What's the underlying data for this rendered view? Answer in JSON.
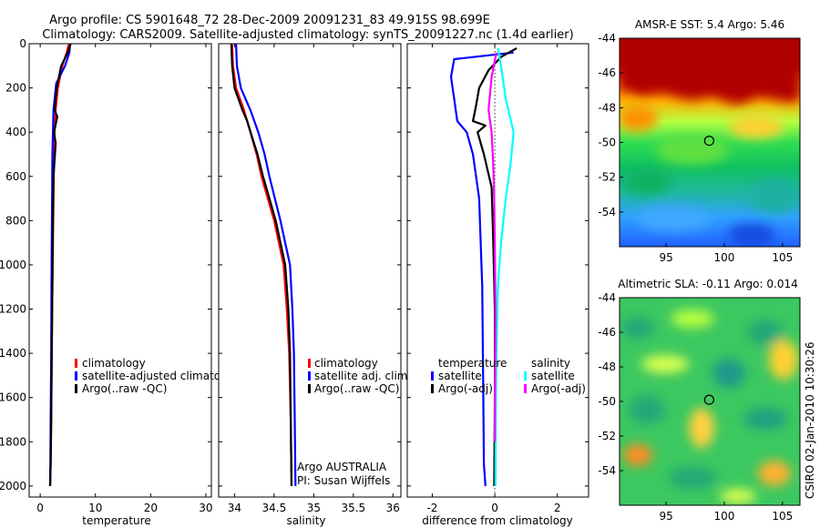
{
  "header": {
    "line1": "Argo profile: CS 5901648_72 28-Dec-2009 20091231_83 49.915S 98.699E",
    "line2": "Climatology: CARS2009. Satellite-adjusted climatology: synTS_20091227.nc (1.4d earlier)"
  },
  "footer": {
    "stamp": "CSIRO 02-Jan-2010 10:30:26"
  },
  "colors": {
    "climatology": "#ff0000",
    "satellite": "#0000ff",
    "argo": "#000000",
    "sat_sal": "#00ffff",
    "argo_sal": "#ff00ff"
  },
  "chart_data": [
    {
      "type": "line",
      "title": "",
      "xlabel": "temperature",
      "ylabel": "",
      "xlim": [
        -2,
        31
      ],
      "ylim": [
        2050,
        0
      ],
      "xticks": [
        "0",
        "10",
        "20",
        "30"
      ],
      "xtick_values": [
        0,
        10,
        20,
        30
      ],
      "yticks": [
        "0",
        "200",
        "400",
        "600",
        "800",
        "1000",
        "1200",
        "1400",
        "1600",
        "1800",
        "2000"
      ],
      "ytick_values": [
        0,
        200,
        400,
        600,
        800,
        1000,
        1200,
        1400,
        1600,
        1800,
        2000
      ],
      "legend": [
        "climatology",
        "satellite-adjusted climatology",
        "Argo(..raw -QC)"
      ],
      "series": [
        {
          "name": "climatology",
          "color": "#ff0000",
          "x": [
            5.2,
            4.8,
            4.0,
            3.2,
            2.8,
            2.6,
            2.5,
            2.4,
            2.3,
            2.2,
            2.1,
            2.0,
            1.9,
            1.8
          ],
          "y": [
            0,
            40,
            100,
            200,
            300,
            400,
            500,
            700,
            900,
            1100,
            1400,
            1700,
            1900,
            2000
          ]
        },
        {
          "name": "satellite-adjusted climatology",
          "color": "#0000ff",
          "x": [
            5.4,
            5.3,
            4.5,
            2.9,
            2.4,
            2.3,
            2.2,
            2.15,
            2.1,
            2.05,
            2.0,
            1.9,
            1.85,
            1.8
          ],
          "y": [
            0,
            40,
            100,
            180,
            300,
            400,
            500,
            700,
            900,
            1100,
            1400,
            1700,
            1900,
            2000
          ]
        },
        {
          "name": "Argo(..raw -QC)",
          "color": "#000000",
          "x": [
            5.5,
            5.0,
            3.8,
            3.4,
            3.0,
            2.6,
            3.1,
            2.5,
            2.8,
            2.4,
            2.3,
            2.2,
            2.1,
            2.0,
            1.9,
            1.8
          ],
          "y": [
            0,
            40,
            100,
            150,
            200,
            300,
            330,
            400,
            450,
            600,
            800,
            1100,
            1400,
            1700,
            1900,
            2000
          ]
        }
      ]
    },
    {
      "type": "line",
      "title": "",
      "xlabel": "salinity",
      "ylabel": "",
      "xlim": [
        33.8,
        36.1
      ],
      "ylim": [
        2050,
        0
      ],
      "xticks": [
        "34",
        "34.5",
        "35",
        "35.5",
        "36"
      ],
      "xtick_values": [
        34,
        34.5,
        35,
        35.5,
        36
      ],
      "legend": [
        "climatology",
        "satellite adj. clim.",
        "Argo(..raw -QC)"
      ],
      "annotations": [
        "Argo AUSTRALIA",
        "PI: Susan Wijffels"
      ],
      "series": [
        {
          "name": "climatology",
          "color": "#ff0000",
          "x": [
            33.97,
            33.98,
            34.02,
            34.12,
            34.2,
            34.28,
            34.34,
            34.42,
            34.5,
            34.56,
            34.62,
            34.66,
            34.69,
            34.71,
            34.72
          ],
          "y": [
            0,
            100,
            200,
            300,
            400,
            500,
            600,
            700,
            800,
            900,
            1000,
            1200,
            1400,
            1700,
            2000
          ]
        },
        {
          "name": "satellite adj. clim.",
          "color": "#0000ff",
          "x": [
            34.02,
            34.03,
            34.08,
            34.2,
            34.3,
            34.38,
            34.44,
            34.51,
            34.58,
            34.64,
            34.7,
            34.73,
            34.75,
            34.76,
            34.77
          ],
          "y": [
            0,
            100,
            200,
            300,
            400,
            500,
            600,
            700,
            800,
            900,
            1000,
            1200,
            1400,
            1700,
            2000
          ]
        },
        {
          "name": "Argo(..raw -QC)",
          "color": "#000000",
          "x": [
            33.96,
            33.97,
            34.0,
            34.1,
            34.16,
            34.22,
            34.29,
            34.36,
            34.44,
            34.52,
            34.58,
            34.64,
            34.68,
            34.7,
            34.71,
            34.72
          ],
          "y": [
            0,
            100,
            200,
            300,
            350,
            420,
            500,
            600,
            700,
            800,
            900,
            1000,
            1200,
            1400,
            1700,
            2000
          ]
        }
      ]
    },
    {
      "type": "line",
      "title": "",
      "xlabel": "difference from climatology",
      "ylabel": "",
      "xlim": [
        -2.8,
        3.0
      ],
      "ylim": [
        2050,
        0
      ],
      "xticks": [
        "-2",
        "0",
        "2"
      ],
      "xtick_values": [
        -2,
        0,
        2
      ],
      "zero_reference": 0,
      "legend_titles": [
        "temperature",
        "salinity"
      ],
      "legend": [
        "satellite",
        "Argo(-adj)",
        "satellite",
        "Argo(-adj)"
      ],
      "series": [
        {
          "name": "temperature satellite",
          "color": "#0000ff",
          "x": [
            0.6,
            -1.3,
            -1.4,
            -1.3,
            -1.2,
            -0.9,
            -0.7,
            -0.5,
            -0.45,
            -0.4,
            -0.38,
            -0.36,
            -0.35,
            -0.3
          ],
          "y": [
            40,
            70,
            150,
            250,
            350,
            400,
            500,
            700,
            900,
            1100,
            1400,
            1700,
            1900,
            2000
          ]
        },
        {
          "name": "temperature Argo(-adj)",
          "color": "#000000",
          "x": [
            0.7,
            0.2,
            -0.2,
            -0.5,
            -0.6,
            -0.7,
            -0.3,
            -0.55,
            -0.35,
            -0.1,
            -0.05,
            0.0,
            0.0,
            -0.02
          ],
          "y": [
            20,
            60,
            120,
            200,
            280,
            350,
            370,
            400,
            500,
            650,
            900,
            1200,
            1600,
            2000
          ]
        },
        {
          "name": "salinity satellite",
          "color": "#00ffff",
          "x": [
            0.1,
            0.2,
            0.35,
            0.6,
            0.5,
            0.35,
            0.2,
            0.1,
            0.05,
            0.03,
            0.02
          ],
          "y": [
            20,
            100,
            250,
            400,
            550,
            700,
            900,
            1100,
            1400,
            1700,
            2000
          ]
        },
        {
          "name": "salinity Argo(-adj)",
          "color": "#ff00ff",
          "x": [
            0.05,
            -0.1,
            -0.2,
            -0.1,
            -0.05,
            -0.02,
            0.0,
            0.02,
            0.01,
            0.0
          ],
          "y": [
            40,
            150,
            300,
            400,
            550,
            700,
            900,
            1200,
            1500,
            1800
          ]
        }
      ]
    },
    {
      "type": "heatmap",
      "title": "AMSR-E SST: 5.4 Argo: 5.46",
      "xlabel": "",
      "ylabel": "",
      "xlim": [
        91,
        106.5
      ],
      "ylim": [
        -56,
        -44
      ],
      "xticks": [
        "95",
        "100",
        "105"
      ],
      "xtick_values": [
        95,
        100,
        105
      ],
      "yticks": [
        "-44",
        "-46",
        "-48",
        "-50",
        "-52",
        "-54"
      ],
      "ytick_values": [
        -44,
        -46,
        -48,
        -50,
        -52,
        -54
      ],
      "marker": {
        "lon": 98.7,
        "lat": -49.9
      }
    },
    {
      "type": "heatmap",
      "title": "Altimetric SLA: -0.11 Argo: 0.014",
      "xlabel": "",
      "ylabel": "",
      "xlim": [
        91,
        106.5
      ],
      "ylim": [
        -56,
        -44
      ],
      "xticks": [
        "95",
        "100",
        "105"
      ],
      "xtick_values": [
        95,
        100,
        105
      ],
      "yticks": [
        "-44",
        "-46",
        "-48",
        "-50",
        "-52",
        "-54"
      ],
      "ytick_values": [
        -44,
        -46,
        -48,
        -50,
        -52,
        -54
      ],
      "marker": {
        "lon": 98.7,
        "lat": -49.9
      }
    }
  ]
}
